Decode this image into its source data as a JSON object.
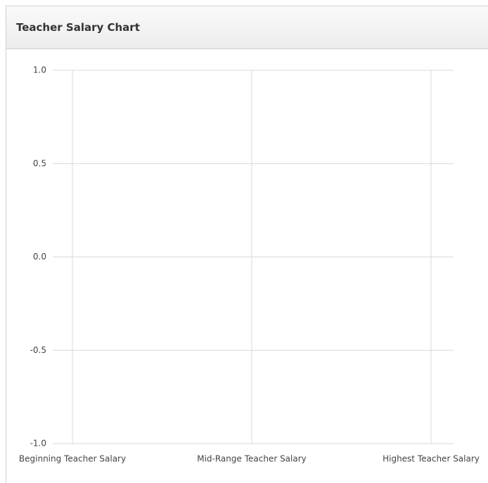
{
  "chart_data": {
    "type": "line",
    "title": "Teacher Salary Chart",
    "categories": [
      "Beginning Teacher Salary",
      "Mid-Range Teacher Salary",
      "Highest Teacher Salary"
    ],
    "series": [],
    "ylim": [
      -1,
      1
    ],
    "yticks": [
      {
        "value": -1,
        "label": "-1.0"
      },
      -0.5,
      {
        "value": 0,
        "label": "0.0"
      },
      0.5,
      {
        "value": 1,
        "label": "1.0"
      }
    ],
    "grid": true
  }
}
